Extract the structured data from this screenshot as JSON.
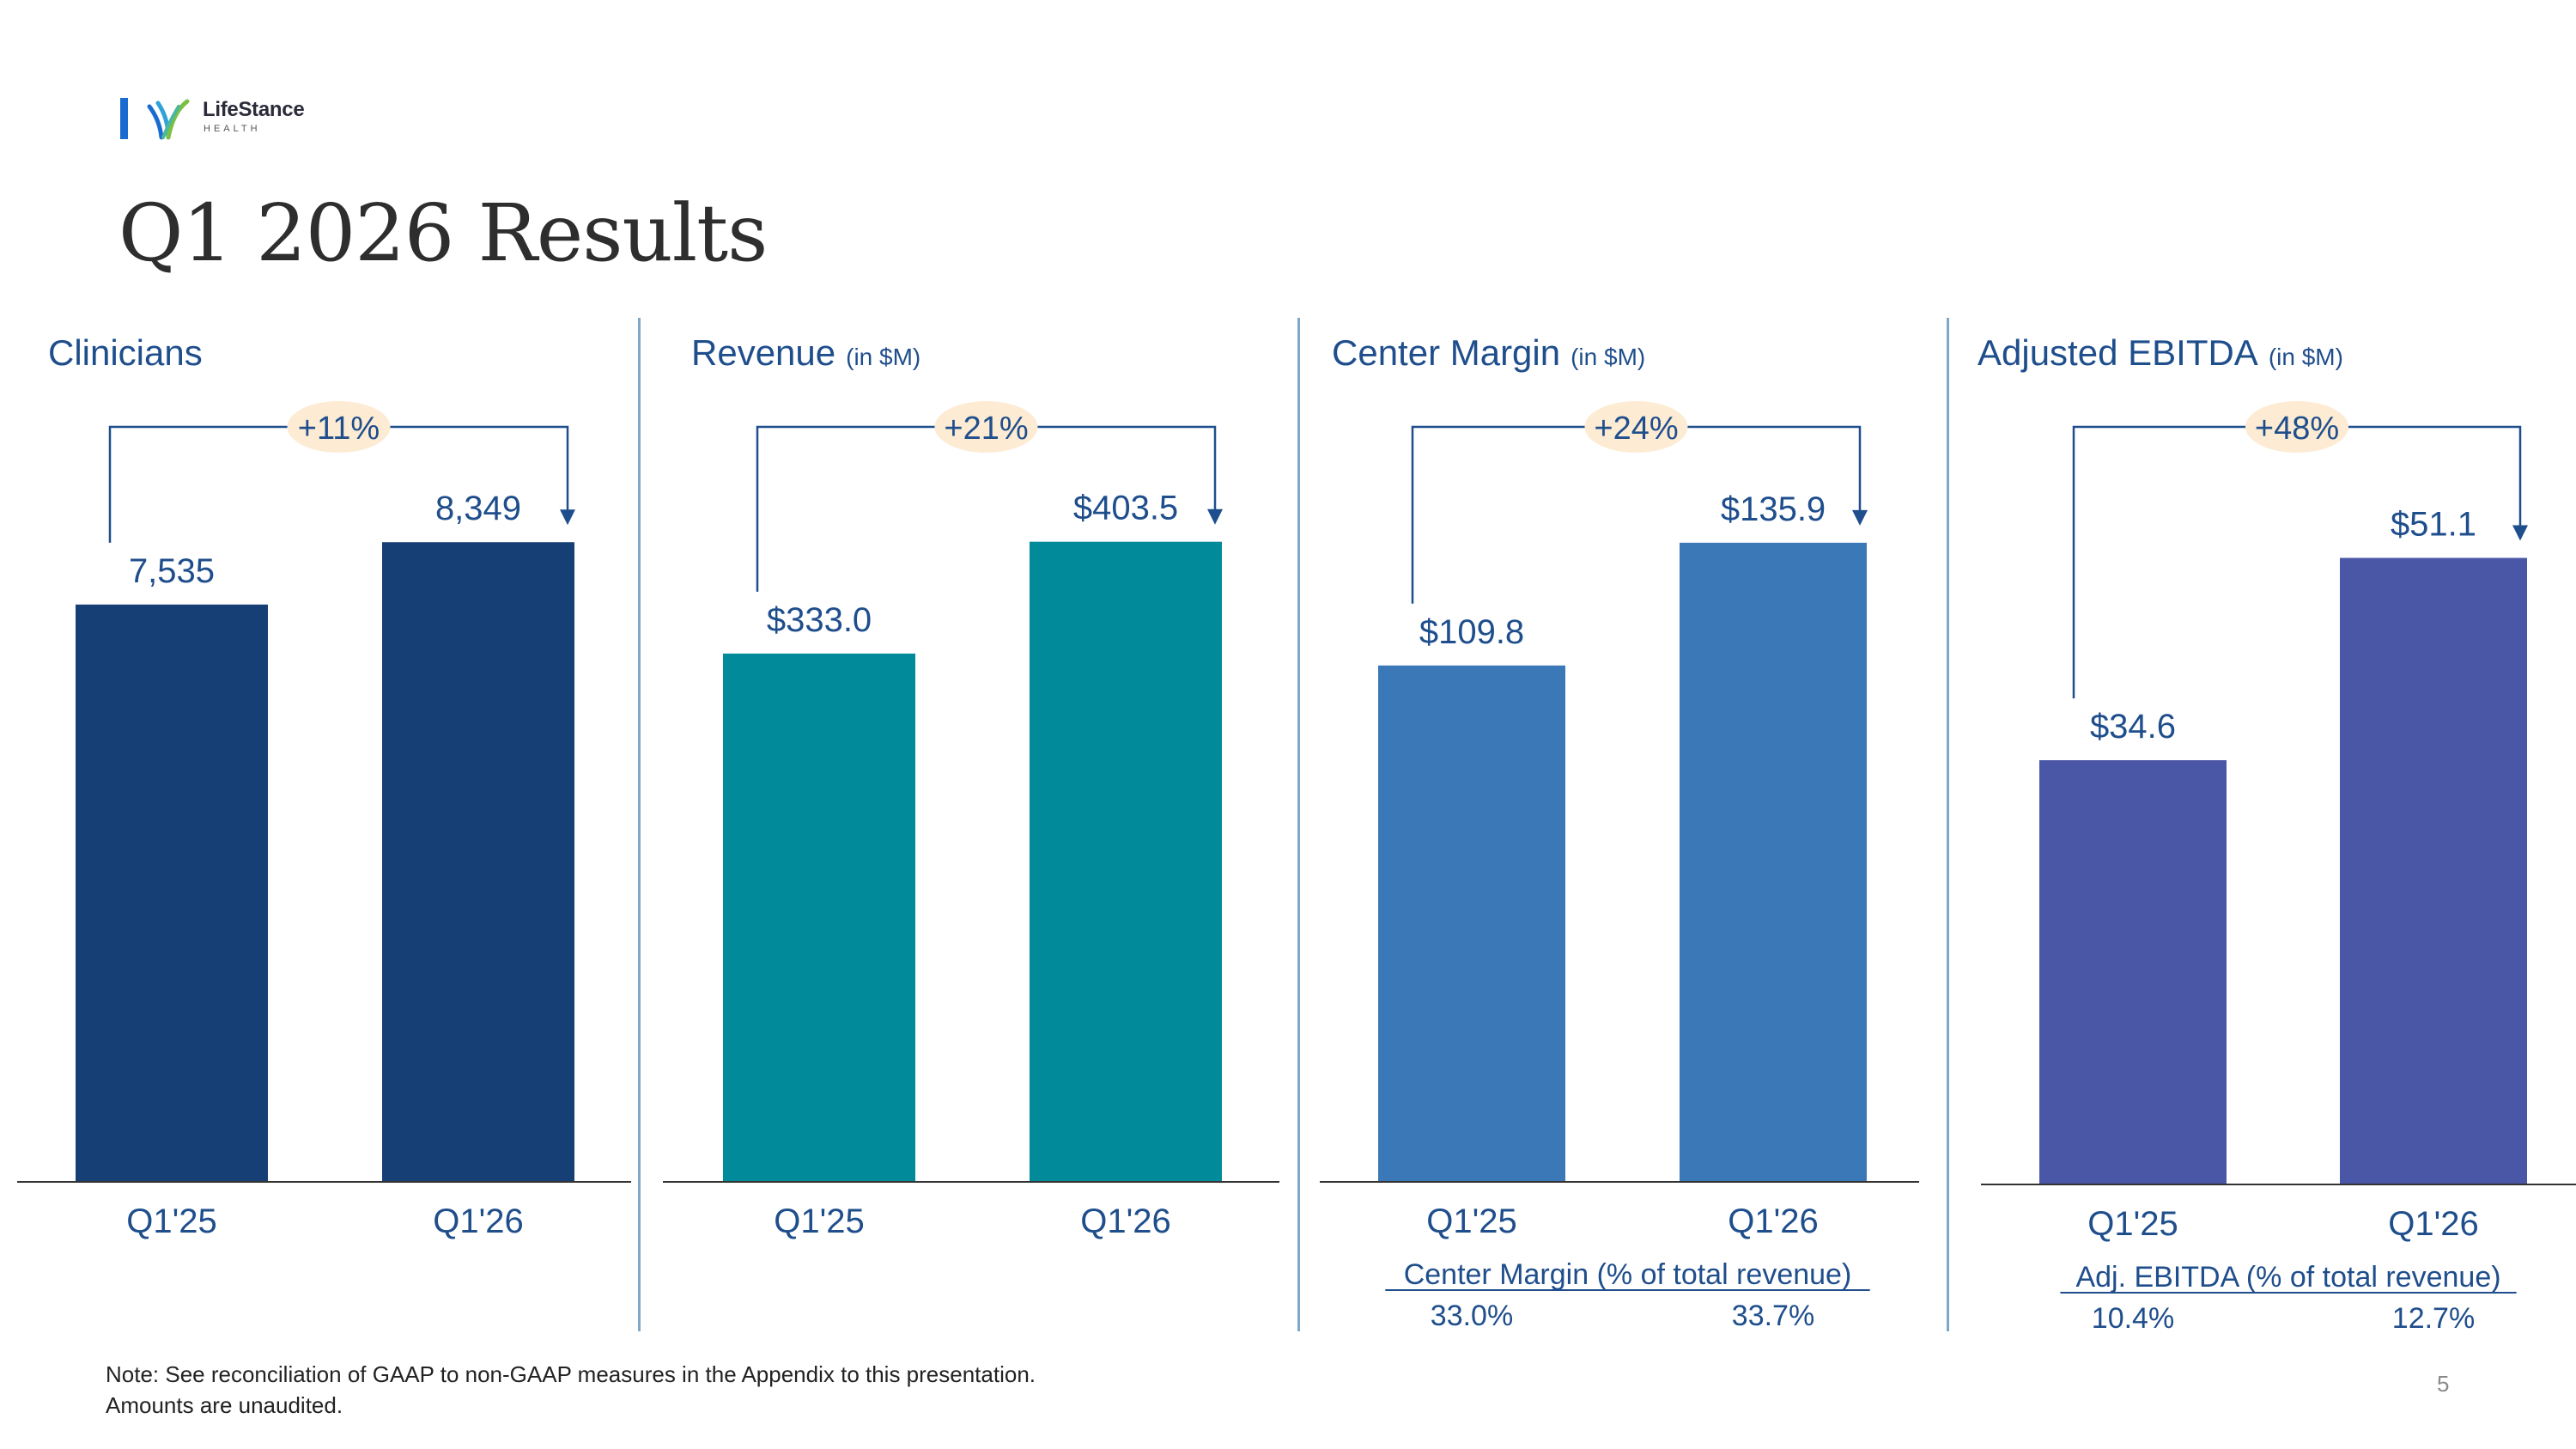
{
  "logo": {
    "name": "LifeStance",
    "sub": "HEALTH"
  },
  "title": "Q1 2026 Results",
  "chart_data": [
    {
      "type": "bar",
      "title": "Clinicians",
      "unit": "",
      "growth": "+11%",
      "categories": [
        "Q1'25",
        "Q1'26"
      ],
      "values": [
        7535,
        8349
      ],
      "labels": [
        "7,535",
        "8,349"
      ],
      "color": "#163f75",
      "ylim": [
        0,
        8800
      ]
    },
    {
      "type": "bar",
      "title": "Revenue",
      "unit": "(in $M)",
      "growth": "+21%",
      "categories": [
        "Q1'25",
        "Q1'26"
      ],
      "values": [
        333.0,
        403.5
      ],
      "labels": [
        "$333.0",
        "$403.5"
      ],
      "color": "#008a9a",
      "ylim": [
        0,
        425
      ]
    },
    {
      "type": "bar",
      "title": "Center Margin",
      "unit": "(in $M)",
      "growth": "+24%",
      "categories": [
        "Q1'25",
        "Q1'26"
      ],
      "values": [
        109.8,
        135.9
      ],
      "labels": [
        "$109.8",
        "$135.9"
      ],
      "color": "#3b78b7",
      "ylim": [
        0,
        143
      ],
      "footer": {
        "caption": "Center Margin (% of total revenue)",
        "values": [
          "33.0%",
          "33.7%"
        ]
      }
    },
    {
      "type": "bar",
      "title": "Adjusted EBITDA",
      "unit": "(in $M)",
      "growth": "+48%",
      "categories": [
        "Q1'25",
        "Q1'26"
      ],
      "values": [
        34.6,
        51.1
      ],
      "labels": [
        "$34.6",
        "$51.1"
      ],
      "color": "#4a56a6",
      "ylim": [
        0,
        54.5
      ],
      "footer": {
        "caption": "Adj. EBITDA (% of total revenue)",
        "values": [
          "10.4%",
          "12.7%"
        ]
      }
    }
  ],
  "note": {
    "line1": "Note:  See reconciliation of GAAP to non-GAAP measures in the Appendix to this presentation.",
    "line2": "Amounts are unaudited."
  },
  "page_number": "5",
  "colors": {
    "title_blue": "#1f4e8c",
    "axis": "#333333",
    "divider": "#7ea8c9",
    "highlight": "#fdebd3"
  }
}
